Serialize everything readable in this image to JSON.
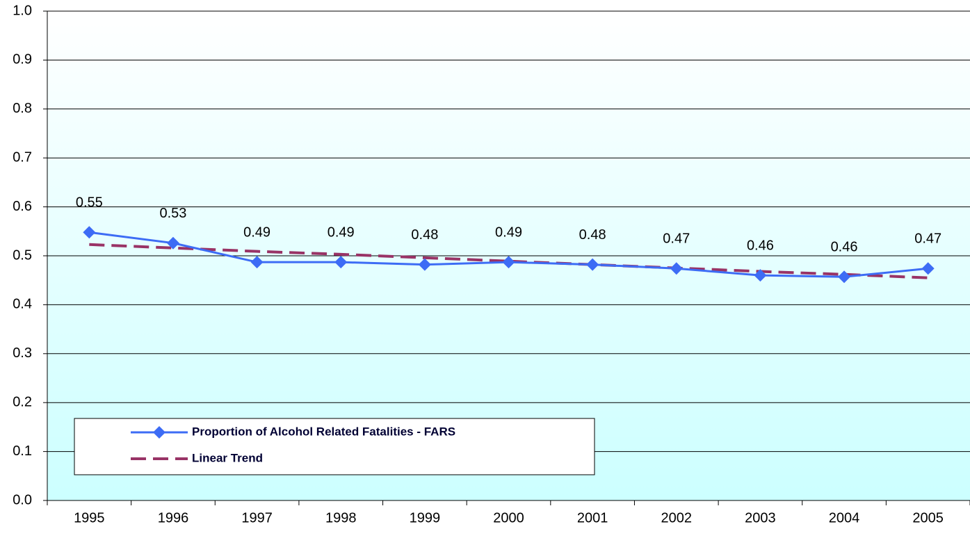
{
  "chart_data": {
    "type": "line",
    "categories": [
      "1995",
      "1996",
      "1997",
      "1998",
      "1999",
      "2000",
      "2001",
      "2002",
      "2003",
      "2004",
      "2005"
    ],
    "series": [
      {
        "name": "Proportion of Alcohol Related Fatalities - FARS",
        "color": "#3d6cf5",
        "marker": "diamond",
        "dashed": false,
        "values": [
          0.548,
          0.526,
          0.487,
          0.487,
          0.482,
          0.487,
          0.482,
          0.474,
          0.46,
          0.457,
          0.474
        ],
        "value_labels": [
          "0.55",
          "0.53",
          "0.49",
          "0.49",
          "0.48",
          "0.49",
          "0.48",
          "0.47",
          "0.46",
          "0.46",
          "0.47"
        ]
      },
      {
        "name": "Linear Trend",
        "color": "#993366",
        "dashed": true,
        "values": [
          0.523,
          0.516,
          0.509,
          0.503,
          0.496,
          0.489,
          0.482,
          0.475,
          0.468,
          0.462,
          0.455
        ]
      }
    ],
    "ylim": [
      0,
      1
    ],
    "yticks": [
      {
        "value": 0,
        "label": "0.0"
      },
      0.1,
      0.2,
      0.3,
      0.4,
      0.5,
      0.6,
      0.7,
      0.8,
      0.9,
      {
        "value": 1,
        "label": "1.0"
      }
    ],
    "grid": true,
    "legend": "lower-left"
  }
}
